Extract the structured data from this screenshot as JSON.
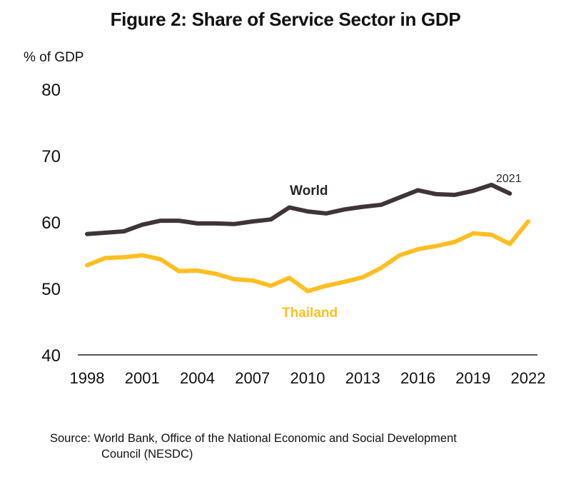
{
  "chart_data": {
    "type": "line",
    "title": "Figure 2: Share of Service Sector in GDP",
    "xlabel": "",
    "ylabel": "% of GDP",
    "ylim": [
      40,
      80
    ],
    "yticks": [
      40,
      50,
      60,
      70,
      80
    ],
    "xlim": [
      1998,
      2022
    ],
    "xticks": [
      1998,
      2001,
      2004,
      2007,
      2010,
      2013,
      2016,
      2019,
      2022
    ],
    "grid": false,
    "legend": "inline labels",
    "series": [
      {
        "name": "World",
        "color": "#3f3536",
        "x": [
          1998,
          1999,
          2000,
          2001,
          2002,
          2003,
          2004,
          2005,
          2006,
          2007,
          2008,
          2009,
          2010,
          2011,
          2012,
          2013,
          2014,
          2015,
          2016,
          2017,
          2018,
          2019,
          2020,
          2021
        ],
        "values": [
          58.2,
          58.4,
          58.6,
          59.6,
          60.2,
          60.2,
          59.8,
          59.8,
          59.7,
          60.1,
          60.4,
          62.2,
          61.6,
          61.3,
          61.9,
          62.3,
          62.6,
          63.7,
          64.8,
          64.2,
          64.1,
          64.7,
          65.6,
          64.3
        ],
        "end_annotation": "2021"
      },
      {
        "name": "Thailand",
        "color": "#ffbe22",
        "x": [
          1998,
          1999,
          2000,
          2001,
          2002,
          2003,
          2004,
          2005,
          2006,
          2007,
          2008,
          2009,
          2010,
          2011,
          2012,
          2013,
          2014,
          2015,
          2016,
          2017,
          2018,
          2019,
          2020,
          2021,
          2022
        ],
        "values": [
          53.5,
          54.6,
          54.7,
          55.0,
          54.4,
          52.6,
          52.7,
          52.2,
          51.4,
          51.2,
          50.4,
          51.6,
          49.6,
          50.4,
          51.0,
          51.7,
          53.1,
          55.0,
          55.9,
          56.4,
          57.0,
          58.3,
          58.1,
          56.7,
          60.1
        ]
      }
    ],
    "source": [
      "Source: World Bank, Office of the National Economic and Social Development",
      "Council (NESDC)"
    ]
  }
}
